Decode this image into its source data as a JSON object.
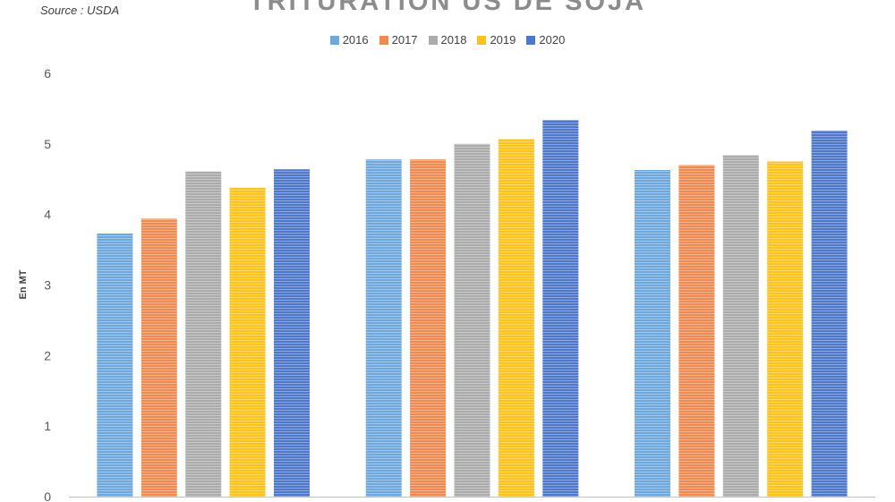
{
  "source": "Source : USDA",
  "title": "TRITURATION US DE SOJA",
  "chart_data": {
    "type": "bar",
    "title": "TRITURATION US DE SOJA",
    "ylabel": "En MT",
    "xlabel": "",
    "ylim": [
      0,
      6
    ],
    "yticks": [
      "0",
      "1",
      "2",
      "3",
      "4",
      "5",
      "6"
    ],
    "legend_position": "top",
    "grid": false,
    "categories": [
      "",
      "",
      ""
    ],
    "series": [
      {
        "name": "2016",
        "color": "#6fa8dc",
        "values": [
          3.73,
          4.78,
          4.63
        ]
      },
      {
        "name": "2017",
        "color": "#ed8b53",
        "values": [
          3.94,
          4.78,
          4.7
        ]
      },
      {
        "name": "2018",
        "color": "#ababab",
        "values": [
          4.61,
          5.0,
          4.84
        ]
      },
      {
        "name": "2019",
        "color": "#fdc31c",
        "values": [
          4.38,
          5.07,
          4.75
        ]
      },
      {
        "name": "2020",
        "color": "#4f78c8",
        "values": [
          4.64,
          5.34,
          5.19
        ]
      }
    ]
  }
}
